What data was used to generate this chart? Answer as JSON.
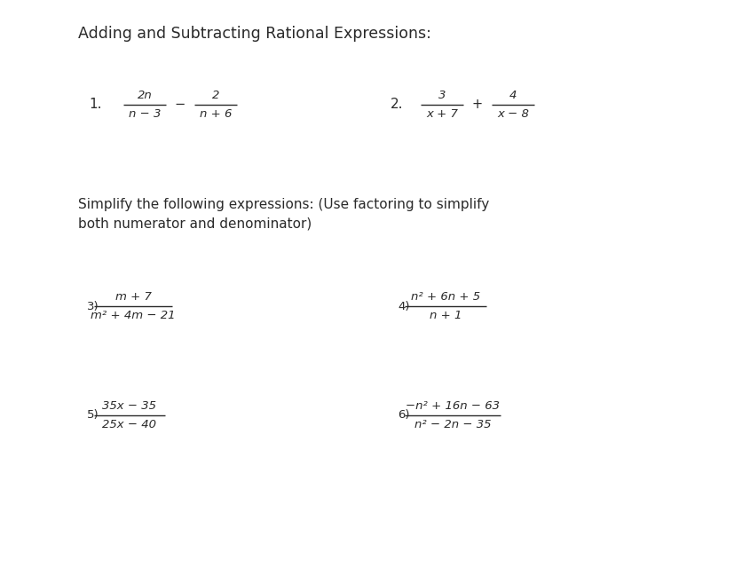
{
  "title": "Adding and Subtracting Rational Expressions:",
  "bg_color": "#ffffff",
  "text_color": "#2a2a2a",
  "title_fontsize": 12.5,
  "body_fontsize": 11,
  "math_fontsize": 9.5,
  "problem1_label": "1.",
  "problem2_label": "2.",
  "problem1_num": "2n",
  "problem1_op": "−",
  "problem1_num2": "2",
  "problem1_den1": "n − 3",
  "problem1_den2": "n + 6",
  "problem2_num": "3",
  "problem2_op": "+",
  "problem2_num2": "4",
  "problem2_den1": "x + 7",
  "problem2_den2": "x − 8",
  "simplify_text1": "Simplify the following expressions: (Use factoring to simplify",
  "simplify_text2": "both numerator and denominator)",
  "p3_label": "3)",
  "p3_num": "m + 7",
  "p3_den": "m² + 4m − 21",
  "p4_label": "4)",
  "p4_num": "n² + 6n + 5",
  "p4_den": "n + 1",
  "p5_label": "5)",
  "p5_num": "35x − 35",
  "p5_den": "25x − 40",
  "p6_label": "6)",
  "p6_num": "−n² + 16n − 63",
  "p6_den": "n² − 2n − 35"
}
